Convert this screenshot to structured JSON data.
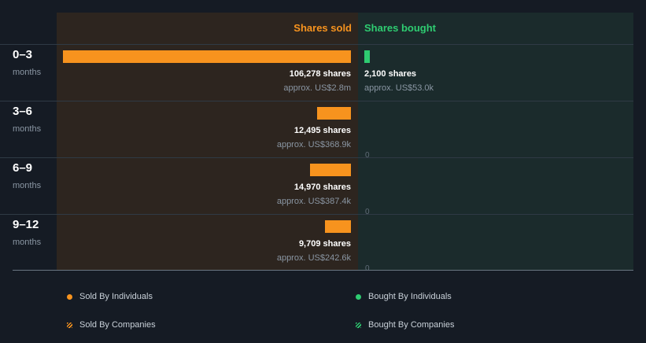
{
  "colors": {
    "sold": "#f7931e",
    "bought": "#2ecc71"
  },
  "chart_data": {
    "type": "bar",
    "orientation": "horizontal",
    "columns": {
      "sold": "Shares sold",
      "bought": "Shares bought"
    },
    "rows": [
      {
        "period": "0–3",
        "unit": "months",
        "sold": 106278,
        "sold_label": "106,278 shares",
        "sold_value": "approx. US$2.8m",
        "bought": 2100,
        "bought_label": "2,100 shares",
        "bought_value": "approx. US$53.0k"
      },
      {
        "period": "3–6",
        "unit": "months",
        "sold": 12495,
        "sold_label": "12,495 shares",
        "sold_value": "approx. US$368.9k",
        "bought": 0,
        "bought_label": "0",
        "bought_value": ""
      },
      {
        "period": "6–9",
        "unit": "months",
        "sold": 14970,
        "sold_label": "14,970 shares",
        "sold_value": "approx. US$387.4k",
        "bought": 0,
        "bought_label": "0",
        "bought_value": ""
      },
      {
        "period": "9–12",
        "unit": "months",
        "sold": 9709,
        "sold_label": "9,709 shares",
        "sold_value": "approx. US$242.6k",
        "bought": 0,
        "bought_label": "0",
        "bought_value": ""
      }
    ],
    "legend": [
      {
        "label": "Sold By Individuals",
        "series": "sold",
        "marker": "dot"
      },
      {
        "label": "Bought By Individuals",
        "series": "bought",
        "marker": "dot"
      },
      {
        "label": "Sold By Companies",
        "series": "sold",
        "marker": "hatch"
      },
      {
        "label": "Bought By Companies",
        "series": "bought",
        "marker": "hatch"
      }
    ]
  }
}
